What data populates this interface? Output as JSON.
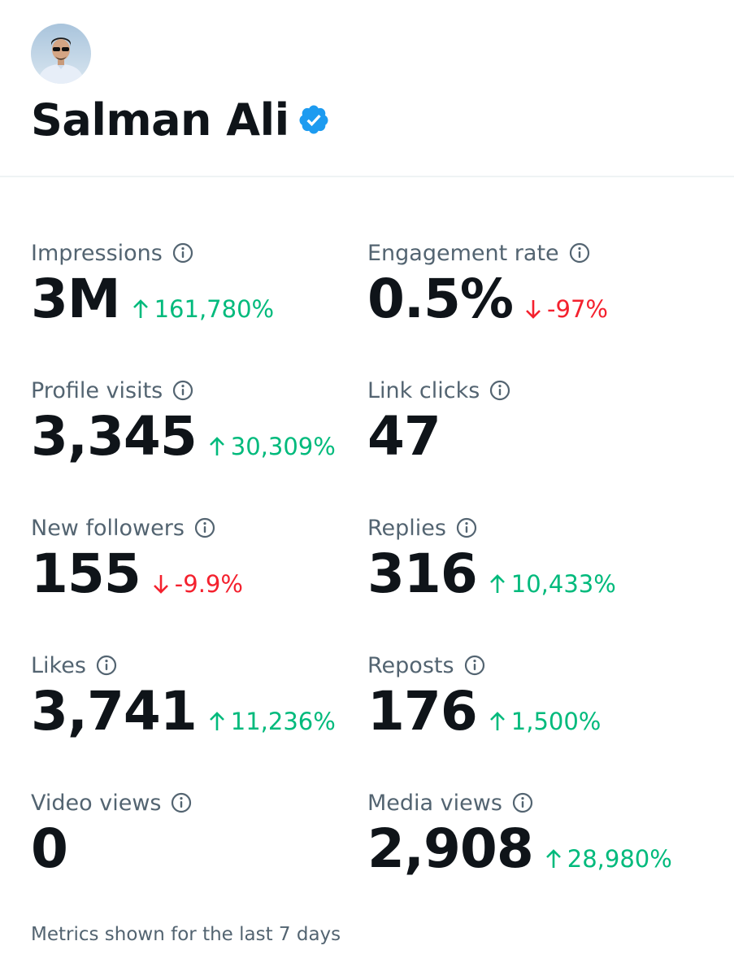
{
  "profile": {
    "name": "Salman Ali",
    "verified_icon": "verified-badge-icon",
    "verified_color": "#1d9bf0"
  },
  "colors": {
    "up": "#00ba7c",
    "down": "#f4212e",
    "label": "#536471",
    "text": "#0f1419"
  },
  "metrics": [
    {
      "label": "Impressions",
      "value": "3M",
      "change": "161,780%",
      "direction": "up"
    },
    {
      "label": "Engagement rate",
      "value": "0.5%",
      "change": "-97%",
      "direction": "down"
    },
    {
      "label": "Profile visits",
      "value": "3,345",
      "change": "30,309%",
      "direction": "up"
    },
    {
      "label": "Link clicks",
      "value": "47",
      "change": "",
      "direction": "none"
    },
    {
      "label": "New followers",
      "value": "155",
      "change": "-9.9%",
      "direction": "down"
    },
    {
      "label": "Replies",
      "value": "316",
      "change": "10,433%",
      "direction": "up"
    },
    {
      "label": "Likes",
      "value": "3,741",
      "change": "11,236%",
      "direction": "up"
    },
    {
      "label": "Reposts",
      "value": "176",
      "change": "1,500%",
      "direction": "up"
    },
    {
      "label": "Video views",
      "value": "0",
      "change": "",
      "direction": "none"
    },
    {
      "label": "Media views",
      "value": "2,908",
      "change": "28,980%",
      "direction": "up"
    }
  ],
  "footer": "Metrics shown for the last 7 days"
}
